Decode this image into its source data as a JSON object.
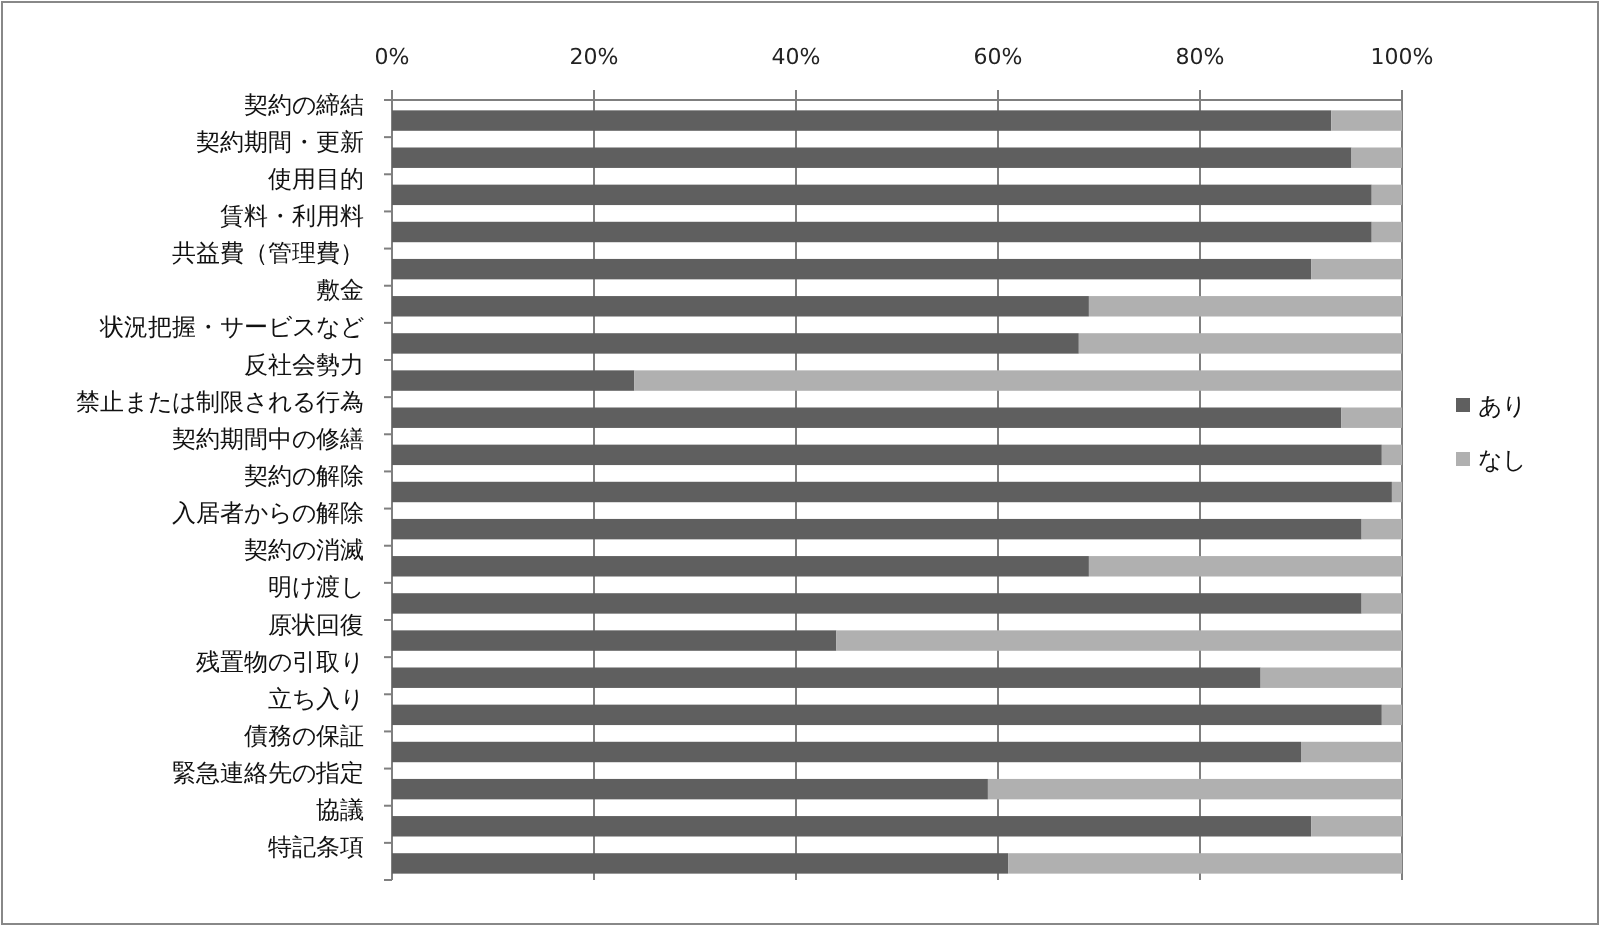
{
  "chart_data": {
    "type": "bar",
    "orientation": "horizontal",
    "stacked": true,
    "grid": "x",
    "legend": "right",
    "categories": [
      "契約の締結",
      "契約期間・更新",
      "使用目的",
      "賃料・利用料",
      "共益費（管理費）",
      "敷金",
      "状況把握・サービスなど",
      "反社会勢力",
      "禁止または制限される行為",
      "契約期間中の修繕",
      "契約の解除",
      "入居者からの解除",
      "契約の消滅",
      "明け渡し",
      "原状回復",
      "残置物の引取り",
      "立ち入り",
      "債務の保証",
      "緊急連絡先の指定",
      "協議",
      "特記条項"
    ],
    "series": [
      {
        "name": "あり",
        "color": "#5f5f5f",
        "values": [
          93,
          95,
          97,
          97,
          91,
          69,
          68,
          24,
          94,
          98,
          99,
          96,
          69,
          96,
          44,
          86,
          98,
          90,
          59,
          91,
          61
        ]
      },
      {
        "name": "なし",
        "color": "#b0b0b0",
        "values": [
          7,
          5,
          3,
          3,
          9,
          31,
          32,
          76,
          6,
          2,
          1,
          4,
          31,
          4,
          56,
          14,
          2,
          10,
          41,
          9,
          39
        ]
      }
    ],
    "xlim": [
      0,
      100
    ],
    "xticks": [
      {
        "value": 0,
        "label": "0%"
      },
      {
        "value": 20,
        "label": "20%"
      },
      {
        "value": 40,
        "label": "40%"
      },
      {
        "value": 60,
        "label": "60%"
      },
      {
        "value": 80,
        "label": "80%"
      },
      {
        "value": 100,
        "label": "100%"
      }
    ]
  }
}
